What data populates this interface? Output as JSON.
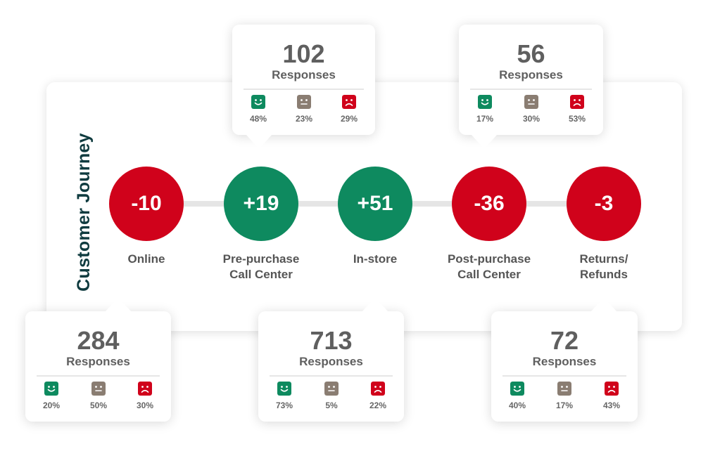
{
  "title": "Customer Journey",
  "colors": {
    "negative": "#d0021b",
    "positive": "#0e8a5f",
    "neutral": "#8a7d72",
    "title": "#0f3b3f",
    "text": "#5f5f5f"
  },
  "stages": [
    {
      "score": "-10",
      "sentiment": "negative",
      "label_line1": "Online",
      "label_line2": "",
      "responses": "284",
      "responses_label": "Responses",
      "positive_pct": "20%",
      "neutral_pct": "50%",
      "negative_pct": "30%"
    },
    {
      "score": "+19",
      "sentiment": "positive",
      "label_line1": "Pre-purchase",
      "label_line2": "Call Center",
      "responses": "102",
      "responses_label": "Responses",
      "positive_pct": "48%",
      "neutral_pct": "23%",
      "negative_pct": "29%"
    },
    {
      "score": "+51",
      "sentiment": "positive",
      "label_line1": "In-store",
      "label_line2": "",
      "responses": "713",
      "responses_label": "Responses",
      "positive_pct": "73%",
      "neutral_pct": "5%",
      "negative_pct": "22%"
    },
    {
      "score": "-36",
      "sentiment": "negative",
      "label_line1": "Post-purchase",
      "label_line2": "Call Center",
      "responses": "56",
      "responses_label": "Responses",
      "positive_pct": "17%",
      "neutral_pct": "30%",
      "negative_pct": "53%"
    },
    {
      "score": "-3",
      "sentiment": "negative",
      "label_line1": "Returns/",
      "label_line2": "Refunds",
      "responses": "72",
      "responses_label": "Responses",
      "positive_pct": "40%",
      "neutral_pct": "17%",
      "negative_pct": "43%"
    }
  ],
  "icons": {
    "positive": "smiley-face-icon",
    "neutral": "neutral-face-icon",
    "negative": "frown-face-icon"
  }
}
